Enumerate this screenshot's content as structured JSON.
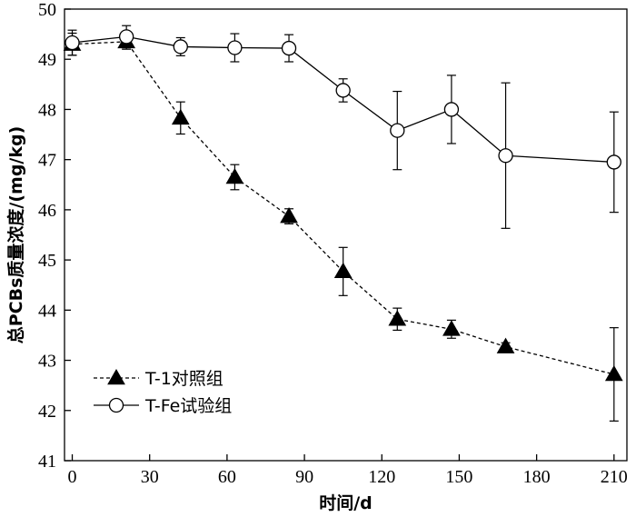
{
  "chart_data": {
    "type": "line",
    "title": "",
    "xlabel": "时间/d",
    "ylabel": "总PCBs质量浓度/(mg/kg)",
    "xlim": [
      -3,
      215
    ],
    "ylim": [
      41,
      50
    ],
    "xticks": [
      0,
      30,
      60,
      90,
      120,
      150,
      180,
      210
    ],
    "yticks": [
      41,
      42,
      43,
      44,
      45,
      46,
      47,
      48,
      49,
      50
    ],
    "grid": false,
    "legend": "bottom-left",
    "series": [
      {
        "name": "T-1对照组",
        "marker": "triangle-filled",
        "line": "dashed",
        "x": [
          0,
          21,
          42,
          63,
          84,
          105,
          126,
          147,
          168,
          210
        ],
        "y": [
          49.3,
          49.35,
          47.83,
          46.65,
          45.87,
          44.77,
          43.82,
          43.62,
          43.27,
          42.72
        ],
        "err": [
          0.22,
          0.15,
          0.32,
          0.25,
          0.15,
          0.48,
          0.22,
          0.18,
          0.08,
          0.93
        ]
      },
      {
        "name": "T-Fe试验组",
        "marker": "circle-open",
        "line": "solid",
        "x": [
          0,
          21,
          42,
          63,
          84,
          105,
          126,
          147,
          168,
          210
        ],
        "y": [
          49.33,
          49.45,
          49.25,
          49.23,
          49.22,
          48.38,
          47.58,
          48.0,
          47.08,
          46.95
        ],
        "err": [
          0.25,
          0.22,
          0.18,
          0.28,
          0.27,
          0.23,
          0.78,
          0.68,
          1.45,
          1.0
        ]
      }
    ]
  }
}
